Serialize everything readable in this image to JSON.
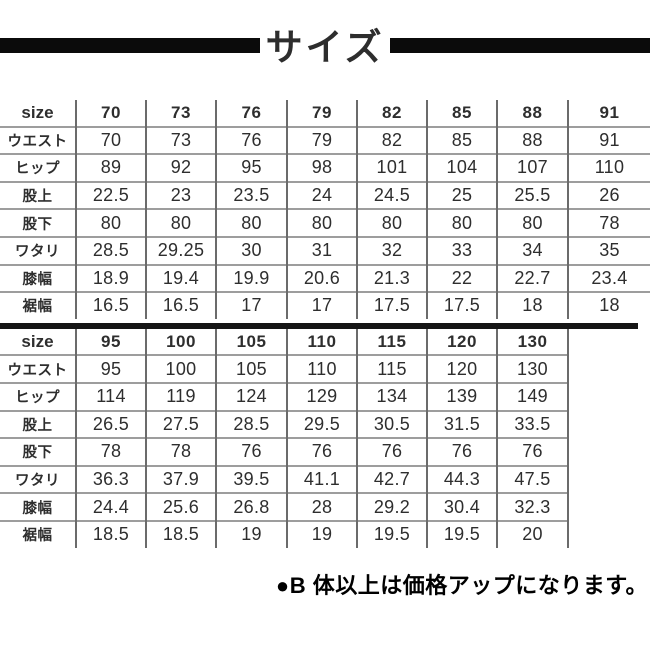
{
  "title": "サイズ",
  "note": "●B 体以上は価格アップになります。",
  "colors": {
    "bar_black": "#0b0b0b",
    "title_text": "#2d2d2d",
    "table_text": "#2e2e2e",
    "grid_vertical": "#6b6b6b",
    "grid_horizontal": "#9d9d9d",
    "note_text": "#000000"
  },
  "tables": [
    {
      "header_label": "size",
      "header_sizes": [
        "70",
        "73",
        "76",
        "79",
        "82",
        "85",
        "88",
        "91"
      ],
      "rows": [
        {
          "label": "ウエスト",
          "values": [
            "70",
            "73",
            "76",
            "79",
            "82",
            "85",
            "88",
            "91"
          ]
        },
        {
          "label": "ヒップ",
          "values": [
            "89",
            "92",
            "95",
            "98",
            "101",
            "104",
            "107",
            "110"
          ]
        },
        {
          "label": "股上",
          "values": [
            "22.5",
            "23",
            "23.5",
            "24",
            "24.5",
            "25",
            "25.5",
            "26"
          ]
        },
        {
          "label": "股下",
          "values": [
            "80",
            "80",
            "80",
            "80",
            "80",
            "80",
            "80",
            "78"
          ]
        },
        {
          "label": "ワタリ",
          "values": [
            "28.5",
            "29.25",
            "30",
            "31",
            "32",
            "33",
            "34",
            "35"
          ]
        },
        {
          "label": "膝幅",
          "values": [
            "18.9",
            "19.4",
            "19.9",
            "20.6",
            "21.3",
            "22",
            "22.7",
            "23.4"
          ]
        },
        {
          "label": "裾幅",
          "values": [
            "16.5",
            "16.5",
            "17",
            "17",
            "17.5",
            "17.5",
            "18",
            "18"
          ]
        }
      ]
    },
    {
      "header_label": "size",
      "header_sizes": [
        "95",
        "100",
        "105",
        "110",
        "115",
        "120",
        "130"
      ],
      "rows": [
        {
          "label": "ウエスト",
          "values": [
            "95",
            "100",
            "105",
            "110",
            "115",
            "120",
            "130"
          ]
        },
        {
          "label": "ヒップ",
          "values": [
            "114",
            "119",
            "124",
            "129",
            "134",
            "139",
            "149"
          ]
        },
        {
          "label": "股上",
          "values": [
            "26.5",
            "27.5",
            "28.5",
            "29.5",
            "30.5",
            "31.5",
            "33.5"
          ]
        },
        {
          "label": "股下",
          "values": [
            "78",
            "78",
            "76",
            "76",
            "76",
            "76",
            "76"
          ]
        },
        {
          "label": "ワタリ",
          "values": [
            "36.3",
            "37.9",
            "39.5",
            "41.1",
            "42.7",
            "44.3",
            "47.5"
          ]
        },
        {
          "label": "膝幅",
          "values": [
            "24.4",
            "25.6",
            "26.8",
            "28",
            "29.2",
            "30.4",
            "32.3"
          ]
        },
        {
          "label": "裾幅",
          "values": [
            "18.5",
            "18.5",
            "19",
            "19",
            "19.5",
            "19.5",
            "20"
          ]
        }
      ]
    }
  ]
}
